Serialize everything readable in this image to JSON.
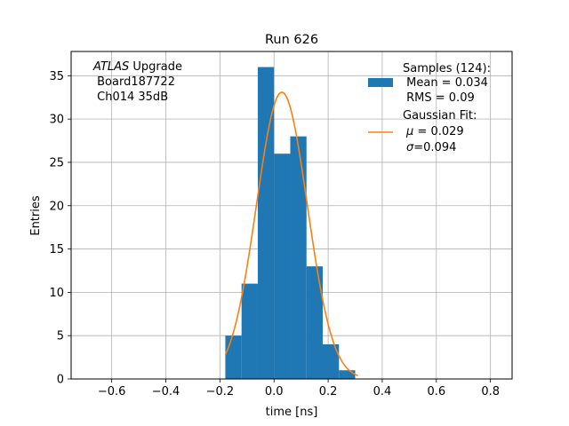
{
  "chart_data": {
    "type": "bar",
    "title": "Run 626",
    "xlabel": "time [ns]",
    "ylabel": "Entries",
    "xlim": [
      -0.75,
      0.88
    ],
    "ylim": [
      0,
      37.8
    ],
    "grid": true,
    "x_ticks": [
      -0.6,
      -0.4,
      -0.2,
      0.0,
      0.2,
      0.4,
      0.6,
      0.8
    ],
    "x_tick_labels": [
      "−0.6",
      "−0.4",
      "−0.2",
      "0.0",
      "0.2",
      "0.4",
      "0.6",
      "0.8"
    ],
    "y_ticks": [
      0,
      5,
      10,
      15,
      20,
      25,
      30,
      35
    ],
    "y_tick_labels": [
      "0",
      "5",
      "10",
      "15",
      "20",
      "25",
      "30",
      "35"
    ],
    "annotation": {
      "experiment": "ATLAS",
      "experiment_suffix": " Upgrade",
      "line2": " Board187722",
      "line3": " Ch014 35dB"
    },
    "histogram": {
      "name": "Samples (124):",
      "color": "#1f77b4",
      "bin_edges": [
        -0.18,
        -0.12,
        -0.06,
        0.0,
        0.06,
        0.12,
        0.18,
        0.24,
        0.3
      ],
      "counts": [
        5,
        11,
        36,
        26,
        28,
        13,
        4,
        1
      ]
    },
    "fit": {
      "name": "Gaussian Fit:",
      "color": "#ff7f0e",
      "mu": 0.029,
      "sigma": 0.094,
      "amplitude": 33.1,
      "x_range": [
        -0.18,
        0.31
      ]
    },
    "legend": {
      "placement": "top-right",
      "hist_lines": [
        "Samples (124):",
        " Mean = 0.034",
        " RMS = 0.09"
      ],
      "fit_title": "Gaussian Fit:",
      "fit_mu_symbol": "μ",
      "fit_mu_value": " = 0.029",
      "fit_sigma_symbol": "σ",
      "fit_sigma_value": "=0.094"
    }
  }
}
